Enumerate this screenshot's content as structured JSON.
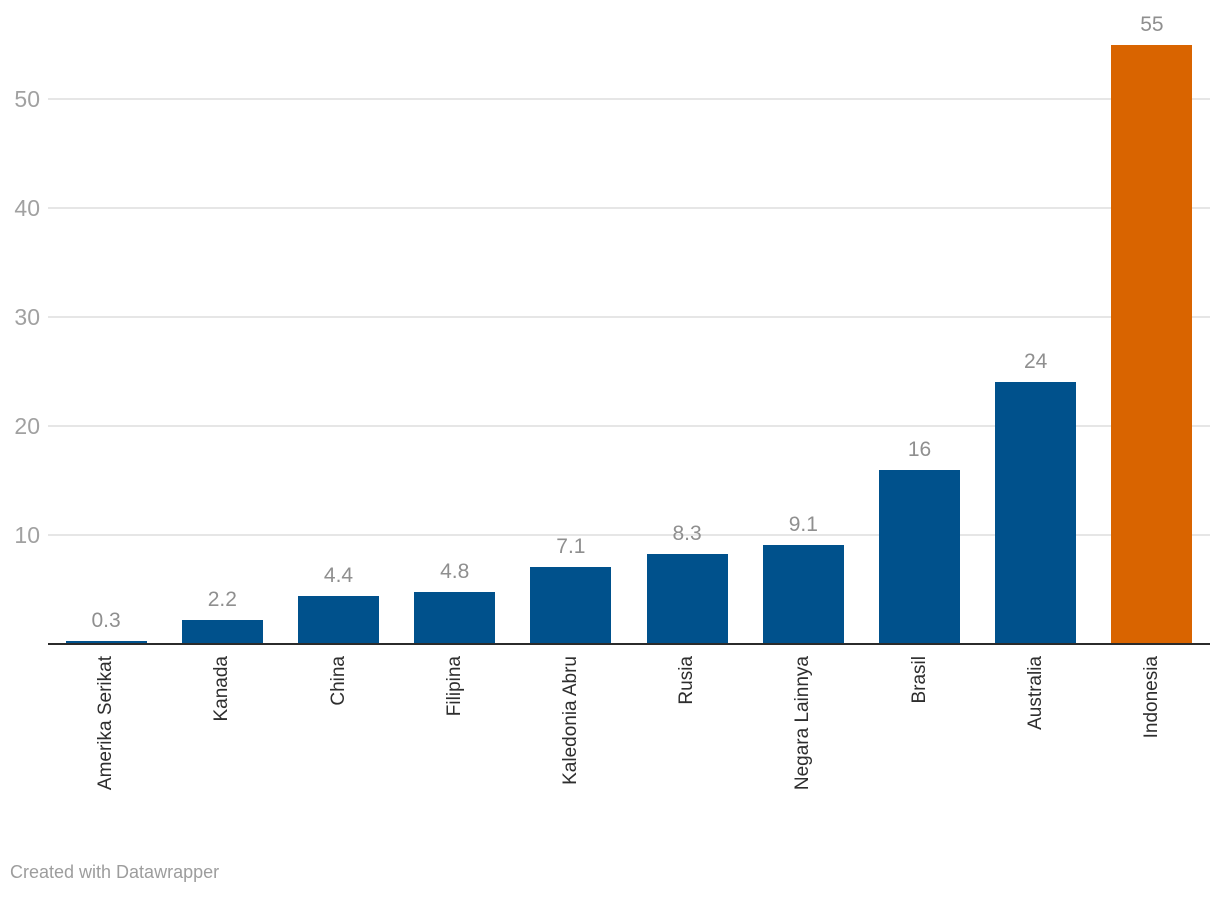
{
  "chart_data": {
    "type": "bar",
    "title": "",
    "xlabel": "",
    "ylabel": "",
    "categories": [
      "Amerika Serikat",
      "Kanada",
      "China",
      "Filipina",
      "Kaledonia Abru",
      "Rusia",
      "Negara Lainnya",
      "Brasil",
      "Australia",
      "Indonesia"
    ],
    "values": [
      0.3,
      2.2,
      4.4,
      4.8,
      7.1,
      8.3,
      9.1,
      16,
      24,
      55
    ],
    "value_labels": [
      "0.3",
      "2.2",
      "4.4",
      "4.8",
      "7.1",
      "8.3",
      "9.1",
      "16",
      "24",
      "55"
    ],
    "y_ticks": [
      10,
      20,
      30,
      40,
      50
    ],
    "ylim": [
      0,
      55
    ],
    "grid": true,
    "legend": "none",
    "highlight_category": "Indonesia",
    "bar_color": "#00518C",
    "highlight_color": "#D96400"
  },
  "colors": {
    "background": "#ffffff",
    "grid": "#e6e6e6",
    "axis": "#2b2b2b",
    "tick_text": "#a1a1a1",
    "value_text": "#8f8f8f",
    "category_text": "#2e2e2e",
    "footer_text": "#9d9d9d"
  },
  "footer": {
    "credit": "Created with Datawrapper"
  }
}
